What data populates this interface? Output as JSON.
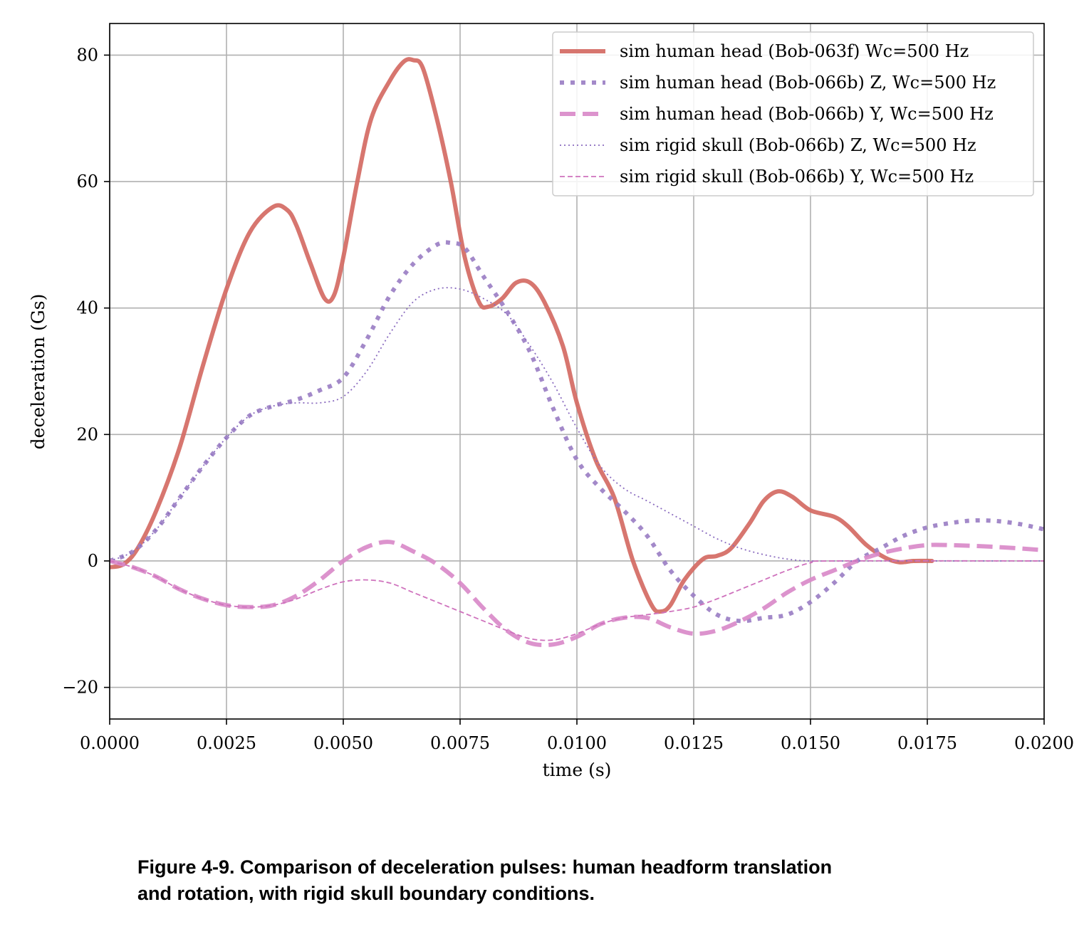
{
  "chart_data": {
    "type": "line",
    "xlabel": "time (s)",
    "ylabel": "deceleration (Gs)",
    "xlim": [
      0,
      0.02
    ],
    "ylim": [
      -25,
      85
    ],
    "xticks": [
      0.0,
      0.0025,
      0.005,
      0.0075,
      0.01,
      0.0125,
      0.015,
      0.0175,
      0.02
    ],
    "xtick_labels": [
      "0.0000",
      "0.0025",
      "0.0050",
      "0.0075",
      "0.0100",
      "0.0125",
      "0.0150",
      "0.0175",
      "0.0200"
    ],
    "yticks": [
      -20,
      0,
      20,
      40,
      60,
      80
    ],
    "ytick_labels": [
      "−20",
      "0",
      "20",
      "40",
      "60",
      "80"
    ],
    "grid": true,
    "legend_position": "top-right",
    "series": [
      {
        "name": "sim human head (Bob-063f) Wc=500 Hz",
        "color": "#d46a63",
        "style": "solid-thick",
        "points": [
          [
            0,
            -1
          ],
          [
            0.0003,
            -0.5
          ],
          [
            0.0006,
            2
          ],
          [
            0.001,
            8
          ],
          [
            0.0015,
            18
          ],
          [
            0.002,
            31
          ],
          [
            0.0025,
            43
          ],
          [
            0.003,
            52
          ],
          [
            0.0035,
            56
          ],
          [
            0.0038,
            55.5
          ],
          [
            0.004,
            53
          ],
          [
            0.0043,
            47
          ],
          [
            0.0046,
            41.5
          ],
          [
            0.0048,
            42
          ],
          [
            0.005,
            48
          ],
          [
            0.0053,
            60
          ],
          [
            0.0056,
            70
          ],
          [
            0.006,
            76
          ],
          [
            0.0063,
            79
          ],
          [
            0.0065,
            79.2
          ],
          [
            0.0067,
            78
          ],
          [
            0.007,
            70
          ],
          [
            0.0073,
            60
          ],
          [
            0.0076,
            48
          ],
          [
            0.0079,
            41
          ],
          [
            0.0081,
            40.2
          ],
          [
            0.0084,
            41.5
          ],
          [
            0.0087,
            44
          ],
          [
            0.009,
            44
          ],
          [
            0.0093,
            41
          ],
          [
            0.0097,
            34
          ],
          [
            0.01,
            25
          ],
          [
            0.0104,
            16
          ],
          [
            0.0108,
            10
          ],
          [
            0.0112,
            0
          ],
          [
            0.0116,
            -7
          ],
          [
            0.0118,
            -8
          ],
          [
            0.012,
            -7
          ],
          [
            0.0123,
            -3
          ],
          [
            0.0127,
            0.3
          ],
          [
            0.013,
            0.8
          ],
          [
            0.0133,
            2
          ],
          [
            0.0137,
            6
          ],
          [
            0.014,
            9.5
          ],
          [
            0.0143,
            11
          ],
          [
            0.0146,
            10.2
          ],
          [
            0.015,
            8
          ],
          [
            0.0155,
            7
          ],
          [
            0.0158,
            5.5
          ],
          [
            0.0162,
            2.5
          ],
          [
            0.0166,
            0.5
          ],
          [
            0.0169,
            -0.2
          ],
          [
            0.0172,
            0
          ],
          [
            0.0176,
            0
          ]
        ]
      },
      {
        "name": "sim human head (Bob-066b) Z, Wc=500 Hz",
        "color": "#9b7fc4",
        "style": "dotted-thick",
        "points": [
          [
            0,
            0
          ],
          [
            0.0005,
            1.5
          ],
          [
            0.001,
            5
          ],
          [
            0.0015,
            10
          ],
          [
            0.002,
            15
          ],
          [
            0.0025,
            19.5
          ],
          [
            0.003,
            23
          ],
          [
            0.0035,
            24.5
          ],
          [
            0.004,
            25.5
          ],
          [
            0.0045,
            27
          ],
          [
            0.005,
            29
          ],
          [
            0.0055,
            35
          ],
          [
            0.006,
            42
          ],
          [
            0.0065,
            47
          ],
          [
            0.007,
            50
          ],
          [
            0.0073,
            50.3
          ],
          [
            0.0076,
            49.5
          ],
          [
            0.008,
            45
          ],
          [
            0.0085,
            39.5
          ],
          [
            0.009,
            33
          ],
          [
            0.0095,
            24
          ],
          [
            0.01,
            16
          ],
          [
            0.0105,
            11.5
          ],
          [
            0.011,
            8
          ],
          [
            0.0115,
            4
          ],
          [
            0.012,
            -1.5
          ],
          [
            0.0125,
            -5.5
          ],
          [
            0.013,
            -8.5
          ],
          [
            0.0135,
            -9.5
          ],
          [
            0.014,
            -9
          ],
          [
            0.0145,
            -8.5
          ],
          [
            0.015,
            -6.5
          ],
          [
            0.0155,
            -3.5
          ],
          [
            0.016,
            0
          ],
          [
            0.0165,
            2
          ],
          [
            0.017,
            4
          ],
          [
            0.0175,
            5.3
          ],
          [
            0.018,
            6
          ],
          [
            0.0185,
            6.4
          ],
          [
            0.019,
            6.3
          ],
          [
            0.0195,
            5.8
          ],
          [
            0.02,
            5
          ]
        ]
      },
      {
        "name": "sim human head (Bob-066b) Y, Wc=500 Hz",
        "color": "#d98ac9",
        "style": "dashed-thick",
        "points": [
          [
            0,
            0
          ],
          [
            0.0005,
            -1
          ],
          [
            0.001,
            -2.5
          ],
          [
            0.0015,
            -4.5
          ],
          [
            0.002,
            -6
          ],
          [
            0.0025,
            -7
          ],
          [
            0.003,
            -7.3
          ],
          [
            0.0035,
            -7
          ],
          [
            0.004,
            -5.5
          ],
          [
            0.0045,
            -3
          ],
          [
            0.005,
            0
          ],
          [
            0.0055,
            2.2
          ],
          [
            0.006,
            3
          ],
          [
            0.0065,
            1.5
          ],
          [
            0.007,
            -0.5
          ],
          [
            0.0075,
            -3.5
          ],
          [
            0.008,
            -7.5
          ],
          [
            0.0085,
            -11
          ],
          [
            0.009,
            -13
          ],
          [
            0.0095,
            -13.2
          ],
          [
            0.01,
            -12
          ],
          [
            0.0105,
            -10
          ],
          [
            0.011,
            -9
          ],
          [
            0.0115,
            -9
          ],
          [
            0.012,
            -10.5
          ],
          [
            0.0125,
            -11.5
          ],
          [
            0.013,
            -11
          ],
          [
            0.0135,
            -9.5
          ],
          [
            0.014,
            -7.5
          ],
          [
            0.0145,
            -5
          ],
          [
            0.015,
            -3
          ],
          [
            0.0155,
            -1.5
          ],
          [
            0.016,
            0
          ],
          [
            0.0165,
            1.2
          ],
          [
            0.017,
            2
          ],
          [
            0.0175,
            2.5
          ],
          [
            0.018,
            2.5
          ],
          [
            0.019,
            2.2
          ],
          [
            0.02,
            1.7
          ]
        ]
      },
      {
        "name": "sim rigid skull (Bob-066b) Z, Wc=500 Hz",
        "color": "#8a6bbf",
        "style": "dotted-thin",
        "points": [
          [
            0,
            0
          ],
          [
            0.0005,
            1.5
          ],
          [
            0.001,
            5
          ],
          [
            0.0015,
            10
          ],
          [
            0.002,
            15
          ],
          [
            0.0025,
            19.5
          ],
          [
            0.003,
            23
          ],
          [
            0.0035,
            24.5
          ],
          [
            0.004,
            25
          ],
          [
            0.0045,
            25
          ],
          [
            0.005,
            26
          ],
          [
            0.0055,
            30
          ],
          [
            0.006,
            36
          ],
          [
            0.0065,
            41
          ],
          [
            0.007,
            43
          ],
          [
            0.0075,
            43
          ],
          [
            0.008,
            41.5
          ],
          [
            0.0085,
            39
          ],
          [
            0.009,
            34
          ],
          [
            0.0095,
            28
          ],
          [
            0.01,
            21
          ],
          [
            0.0105,
            15
          ],
          [
            0.011,
            11.5
          ],
          [
            0.0115,
            9.5
          ],
          [
            0.012,
            7.5
          ],
          [
            0.0125,
            5.5
          ],
          [
            0.013,
            3.5
          ],
          [
            0.0135,
            2
          ],
          [
            0.014,
            1
          ],
          [
            0.0145,
            0.3
          ],
          [
            0.015,
            0
          ],
          [
            0.016,
            0
          ],
          [
            0.02,
            0
          ]
        ]
      },
      {
        "name": "sim rigid skull (Bob-066b) Y, Wc=500 Hz",
        "color": "#cf72bd",
        "style": "dashed-thin",
        "points": [
          [
            0,
            0
          ],
          [
            0.0005,
            -1
          ],
          [
            0.001,
            -2.5
          ],
          [
            0.0015,
            -4.5
          ],
          [
            0.002,
            -6
          ],
          [
            0.0025,
            -7
          ],
          [
            0.003,
            -7.3
          ],
          [
            0.0035,
            -7
          ],
          [
            0.004,
            -6
          ],
          [
            0.0045,
            -4.5
          ],
          [
            0.005,
            -3.3
          ],
          [
            0.0055,
            -3
          ],
          [
            0.006,
            -3.5
          ],
          [
            0.0065,
            -5
          ],
          [
            0.007,
            -6.5
          ],
          [
            0.0075,
            -8
          ],
          [
            0.008,
            -9.5
          ],
          [
            0.0085,
            -11
          ],
          [
            0.009,
            -12.3
          ],
          [
            0.0095,
            -12.5
          ],
          [
            0.01,
            -11.5
          ],
          [
            0.0105,
            -10
          ],
          [
            0.011,
            -9
          ],
          [
            0.0115,
            -8.5
          ],
          [
            0.012,
            -8
          ],
          [
            0.0125,
            -7.3
          ],
          [
            0.013,
            -6
          ],
          [
            0.0135,
            -4.5
          ],
          [
            0.014,
            -3
          ],
          [
            0.0145,
            -1.5
          ],
          [
            0.015,
            -0.3
          ],
          [
            0.0155,
            0
          ],
          [
            0.02,
            0
          ]
        ]
      }
    ]
  },
  "caption": {
    "line1": "Figure 4-9. Comparison of deceleration pulses: human headform translation",
    "line2": "and rotation, with rigid skull boundary conditions."
  }
}
